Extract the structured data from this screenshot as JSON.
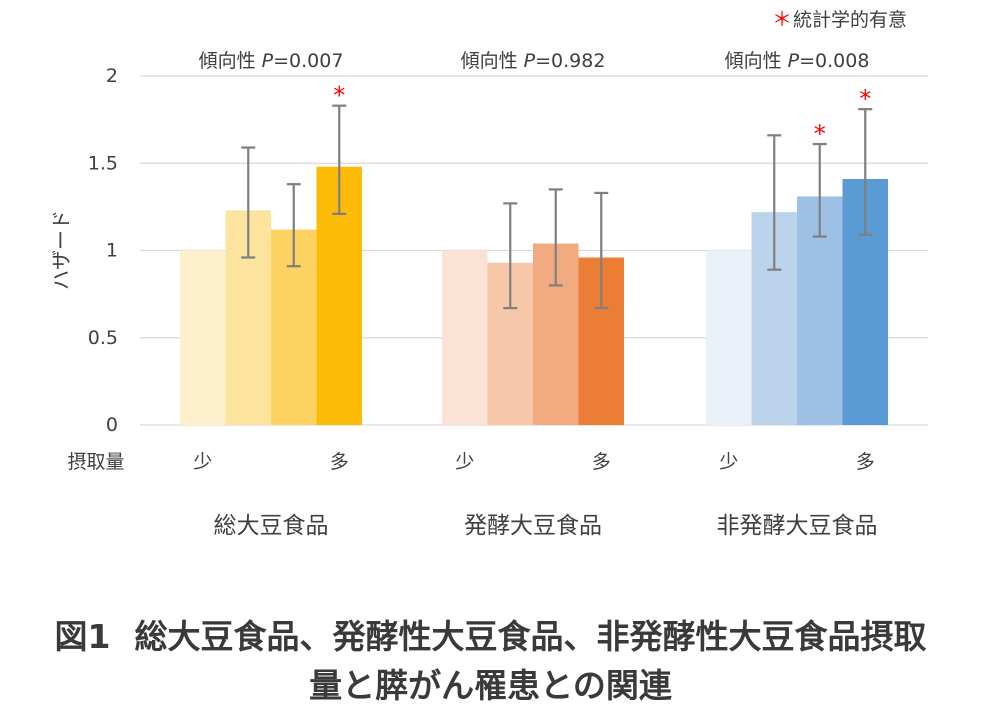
{
  "chart_data": {
    "type": "bar",
    "ylabel": "ハザード",
    "ylim": [
      0,
      2
    ],
    "yticks": [
      0,
      0.5,
      1,
      1.5,
      2
    ],
    "ytick_labels": [
      "0",
      "0.5",
      "1",
      "1.5",
      "2"
    ],
    "grid": true,
    "intake_label": "摂取量",
    "intake_low_label": "少",
    "intake_high_label": "多",
    "legend": {
      "marker": "＊",
      "label": "統計学的有意",
      "color": "#ff0000",
      "placement": "top-right"
    },
    "groups": [
      {
        "name": "総大豆食品",
        "trend_label": "傾向性 ",
        "trend_p_symbol": "P",
        "trend_p_value": "=0.007",
        "bars": [
          {
            "value": 1.0,
            "ci_low": null,
            "ci_high": null,
            "significant": false,
            "color": "#fef0cc"
          },
          {
            "value": 1.23,
            "ci_low": 0.96,
            "ci_high": 1.59,
            "significant": false,
            "color": "#fde49e"
          },
          {
            "value": 1.12,
            "ci_low": 0.91,
            "ci_high": 1.38,
            "significant": false,
            "color": "#fcd363"
          },
          {
            "value": 1.48,
            "ci_low": 1.21,
            "ci_high": 1.83,
            "significant": true,
            "color": "#fbbb07"
          }
        ]
      },
      {
        "name": "発酵大豆食品",
        "trend_label": "傾向性 ",
        "trend_p_symbol": "P",
        "trend_p_value": "=0.982",
        "bars": [
          {
            "value": 1.0,
            "ci_low": null,
            "ci_high": null,
            "significant": false,
            "color": "#fbe2d4"
          },
          {
            "value": 0.93,
            "ci_low": 0.67,
            "ci_high": 1.27,
            "significant": false,
            "color": "#f6c7a9"
          },
          {
            "value": 1.04,
            "ci_low": 0.8,
            "ci_high": 1.35,
            "significant": false,
            "color": "#f2aa80"
          },
          {
            "value": 0.96,
            "ci_low": 0.67,
            "ci_high": 1.33,
            "significant": false,
            "color": "#ec7d35"
          }
        ]
      },
      {
        "name": "非発酵大豆食品",
        "trend_label": "傾向性 ",
        "trend_p_symbol": "P",
        "trend_p_value": "=0.008",
        "bars": [
          {
            "value": 1.0,
            "ci_low": null,
            "ci_high": null,
            "significant": false,
            "color": "#eaf1f9"
          },
          {
            "value": 1.22,
            "ci_low": 0.89,
            "ci_high": 1.66,
            "significant": false,
            "color": "#bcd3ec"
          },
          {
            "value": 1.31,
            "ci_low": 1.08,
            "ci_high": 1.61,
            "significant": true,
            "color": "#9dc0e4"
          },
          {
            "value": 1.41,
            "ci_low": 1.09,
            "ci_high": 1.81,
            "significant": true,
            "color": "#5b9bd5"
          }
        ]
      }
    ]
  },
  "caption": {
    "figure_label": "図1",
    "line1": "総大豆食品、発酵性大豆食品、非発酵性大豆食品摂取",
    "line2": "量と膵がん罹患との関連"
  }
}
